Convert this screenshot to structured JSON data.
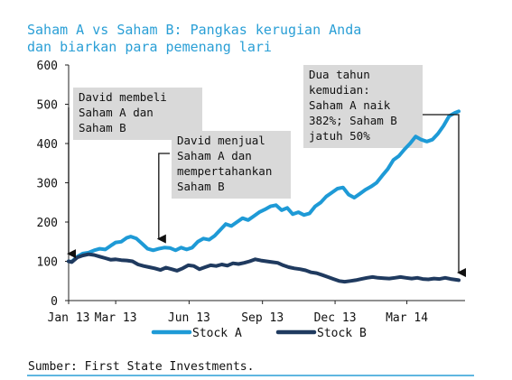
{
  "chart_data": {
    "type": "line",
    "title": "Saham A vs Saham B: Pangkas kerugian Anda dan biarkan para pemenang lari",
    "title_lines": [
      "Saham A vs Saham B: Pangkas kerugian Anda",
      "dan biarkan para pemenang lari"
    ],
    "xlabel": "",
    "ylabel": "",
    "ylim": [
      0,
      600
    ],
    "yticks": [
      0,
      100,
      200,
      300,
      400,
      500,
      600
    ],
    "xlim": [
      "2013-01-01",
      "2014-05-05"
    ],
    "xticks": [
      {
        "date": "2013-01-01",
        "label": "Jan 13"
      },
      {
        "date": "2013-03-01",
        "label": "Mar 13"
      },
      {
        "date": "2013-06-01",
        "label": "Jun 13"
      },
      {
        "date": "2013-09-01",
        "label": "Sep 13"
      },
      {
        "date": "2013-12-01",
        "label": "Dec 13"
      },
      {
        "date": "2014-03-01",
        "label": "Mar 14"
      }
    ],
    "grid": false,
    "legend_position": "bottom",
    "series": [
      {
        "name": "Stock A",
        "color": "#1e9ad6",
        "points": [
          [
            "2013-01-01",
            100
          ],
          [
            "2013-01-05",
            99
          ],
          [
            "2013-01-12",
            112
          ],
          [
            "2013-01-19",
            120
          ],
          [
            "2013-01-26",
            122
          ],
          [
            "2013-02-02",
            128
          ],
          [
            "2013-02-09",
            132
          ],
          [
            "2013-02-16",
            130
          ],
          [
            "2013-02-23",
            140
          ],
          [
            "2013-03-01",
            148
          ],
          [
            "2013-03-08",
            150
          ],
          [
            "2013-03-15",
            160
          ],
          [
            "2013-03-20",
            163
          ],
          [
            "2013-03-27",
            158
          ],
          [
            "2013-04-03",
            145
          ],
          [
            "2013-04-10",
            132
          ],
          [
            "2013-04-17",
            128
          ],
          [
            "2013-04-24",
            132
          ],
          [
            "2013-05-01",
            135
          ],
          [
            "2013-05-08",
            134
          ],
          [
            "2013-05-15",
            128
          ],
          [
            "2013-05-22",
            135
          ],
          [
            "2013-05-29",
            130
          ],
          [
            "2013-06-05",
            135
          ],
          [
            "2013-06-12",
            150
          ],
          [
            "2013-06-19",
            158
          ],
          [
            "2013-06-26",
            155
          ],
          [
            "2013-07-03",
            165
          ],
          [
            "2013-07-10",
            180
          ],
          [
            "2013-07-17",
            195
          ],
          [
            "2013-07-24",
            190
          ],
          [
            "2013-07-31",
            200
          ],
          [
            "2013-08-07",
            210
          ],
          [
            "2013-08-14",
            205
          ],
          [
            "2013-08-21",
            215
          ],
          [
            "2013-08-28",
            225
          ],
          [
            "2013-09-04",
            232
          ],
          [
            "2013-09-11",
            240
          ],
          [
            "2013-09-18",
            243
          ],
          [
            "2013-09-25",
            230
          ],
          [
            "2013-10-02",
            236
          ],
          [
            "2013-10-09",
            220
          ],
          [
            "2013-10-16",
            225
          ],
          [
            "2013-10-23",
            218
          ],
          [
            "2013-10-30",
            222
          ],
          [
            "2013-11-06",
            240
          ],
          [
            "2013-11-13",
            250
          ],
          [
            "2013-11-20",
            265
          ],
          [
            "2013-11-27",
            275
          ],
          [
            "2013-12-04",
            285
          ],
          [
            "2013-12-11",
            288
          ],
          [
            "2013-12-18",
            270
          ],
          [
            "2013-12-25",
            262
          ],
          [
            "2014-01-01",
            272
          ],
          [
            "2014-01-08",
            282
          ],
          [
            "2014-01-15",
            290
          ],
          [
            "2014-01-22",
            300
          ],
          [
            "2014-01-29",
            318
          ],
          [
            "2014-02-05",
            335
          ],
          [
            "2014-02-12",
            358
          ],
          [
            "2014-02-19",
            368
          ],
          [
            "2014-02-26",
            385
          ],
          [
            "2014-03-05",
            400
          ],
          [
            "2014-03-12",
            418
          ],
          [
            "2014-03-19",
            410
          ],
          [
            "2014-03-26",
            405
          ],
          [
            "2014-04-02",
            410
          ],
          [
            "2014-04-09",
            425
          ],
          [
            "2014-04-16",
            445
          ],
          [
            "2014-04-23",
            470
          ],
          [
            "2014-04-30",
            478
          ],
          [
            "2014-05-05",
            482
          ]
        ]
      },
      {
        "name": "Stock B",
        "color": "#1f3a5f",
        "points": [
          [
            "2013-01-01",
            100
          ],
          [
            "2013-01-05",
            98
          ],
          [
            "2013-01-12",
            110
          ],
          [
            "2013-01-19",
            115
          ],
          [
            "2013-01-26",
            118
          ],
          [
            "2013-02-02",
            116
          ],
          [
            "2013-02-09",
            112
          ],
          [
            "2013-02-16",
            108
          ],
          [
            "2013-02-23",
            104
          ],
          [
            "2013-03-01",
            105
          ],
          [
            "2013-03-08",
            103
          ],
          [
            "2013-03-15",
            102
          ],
          [
            "2013-03-22",
            100
          ],
          [
            "2013-03-29",
            92
          ],
          [
            "2013-04-05",
            88
          ],
          [
            "2013-04-12",
            85
          ],
          [
            "2013-04-19",
            82
          ],
          [
            "2013-04-26",
            78
          ],
          [
            "2013-05-03",
            84
          ],
          [
            "2013-05-10",
            80
          ],
          [
            "2013-05-17",
            76
          ],
          [
            "2013-05-24",
            82
          ],
          [
            "2013-05-31",
            90
          ],
          [
            "2013-06-07",
            88
          ],
          [
            "2013-06-14",
            80
          ],
          [
            "2013-06-21",
            85
          ],
          [
            "2013-06-28",
            90
          ],
          [
            "2013-07-05",
            88
          ],
          [
            "2013-07-12",
            92
          ],
          [
            "2013-07-19",
            89
          ],
          [
            "2013-07-26",
            95
          ],
          [
            "2013-08-02",
            93
          ],
          [
            "2013-08-09",
            96
          ],
          [
            "2013-08-16",
            100
          ],
          [
            "2013-08-23",
            105
          ],
          [
            "2013-08-30",
            102
          ],
          [
            "2013-09-06",
            100
          ],
          [
            "2013-09-13",
            98
          ],
          [
            "2013-09-20",
            96
          ],
          [
            "2013-09-27",
            90
          ],
          [
            "2013-10-04",
            85
          ],
          [
            "2013-10-11",
            82
          ],
          [
            "2013-10-18",
            80
          ],
          [
            "2013-10-25",
            77
          ],
          [
            "2013-11-01",
            72
          ],
          [
            "2013-11-08",
            70
          ],
          [
            "2013-11-15",
            65
          ],
          [
            "2013-11-22",
            60
          ],
          [
            "2013-11-29",
            55
          ],
          [
            "2013-12-06",
            50
          ],
          [
            "2013-12-13",
            48
          ],
          [
            "2013-12-20",
            50
          ],
          [
            "2013-12-27",
            52
          ],
          [
            "2014-01-03",
            55
          ],
          [
            "2014-01-10",
            58
          ],
          [
            "2014-01-17",
            60
          ],
          [
            "2014-01-24",
            58
          ],
          [
            "2014-01-31",
            57
          ],
          [
            "2014-02-07",
            56
          ],
          [
            "2014-02-14",
            58
          ],
          [
            "2014-02-21",
            60
          ],
          [
            "2014-02-28",
            58
          ],
          [
            "2014-03-07",
            56
          ],
          [
            "2014-03-14",
            58
          ],
          [
            "2014-03-21",
            55
          ],
          [
            "2014-03-28",
            54
          ],
          [
            "2014-04-04",
            56
          ],
          [
            "2014-04-11",
            55
          ],
          [
            "2014-04-18",
            58
          ],
          [
            "2014-04-25",
            55
          ],
          [
            "2014-05-05",
            52
          ]
        ]
      }
    ],
    "annotations": [
      {
        "id": "buy",
        "lines": [
          "David membeli",
          "Saham A dan",
          "Saham B"
        ],
        "arrow_to": {
          "date": "2013-01-01",
          "value": 110
        }
      },
      {
        "id": "sell",
        "lines": [
          "David menjual",
          "Saham A dan",
          "mempertahankan",
          "Saham B"
        ],
        "arrow_to": {
          "date": "2013-04-24",
          "value": 148
        }
      },
      {
        "id": "two-years",
        "lines": [
          "Dua tahun",
          "kemudian:",
          "Saham A naik",
          "382%; Saham B",
          "jatuh 50%"
        ],
        "arrow_to": {
          "date": "2014-05-05",
          "value": 62
        }
      }
    ],
    "source": "Sumber: First State Investments."
  }
}
